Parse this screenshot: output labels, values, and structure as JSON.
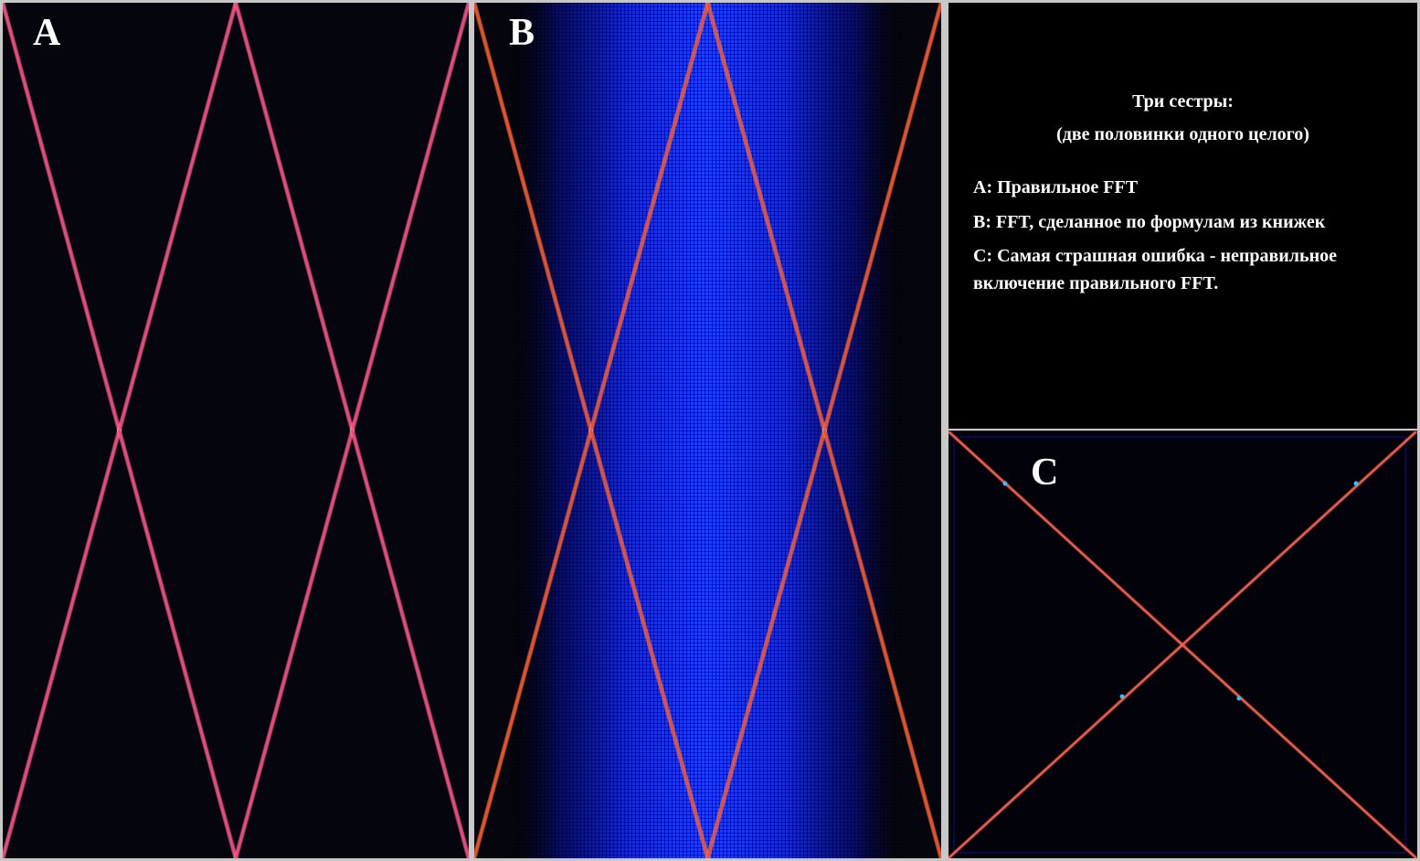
{
  "panels": {
    "a": {
      "label": "A"
    },
    "b": {
      "label": "B"
    },
    "c": {
      "label": "C"
    }
  },
  "info": {
    "title": "Три сестры:",
    "subtitle": "(две половинки одного целого)",
    "line_a": "A: Правильное FFT",
    "line_b": "B: FFT, сделанное по формулам из книжек",
    "line_c1": "C: Самая страшная ошибка - неправильное",
    "line_c2": "включение правильного FFT."
  },
  "colors": {
    "background": "#05050d",
    "line_a": "#ff3f7a",
    "line_b": "#ff4a10",
    "halo_b": "#1f35ff",
    "line_c": "#ff5a50",
    "frame": "#c8c8c8"
  }
}
